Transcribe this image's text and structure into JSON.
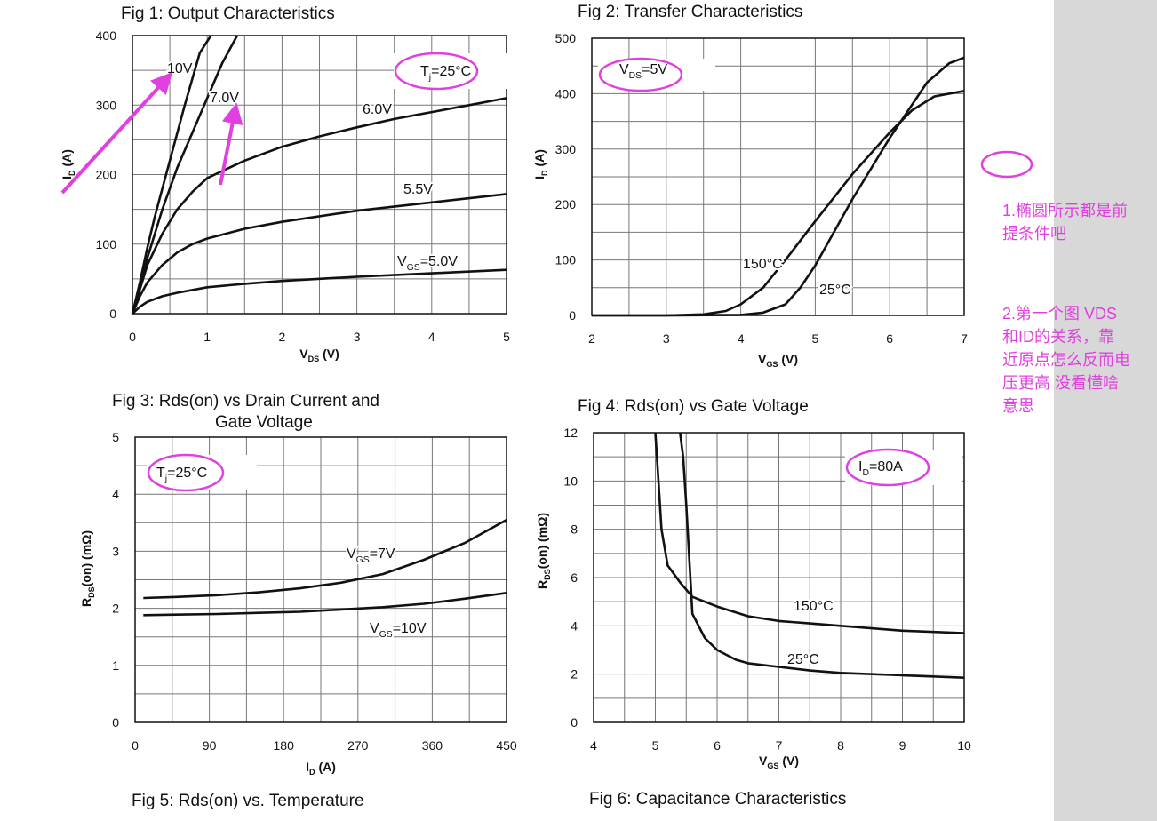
{
  "figures": [
    {
      "title": "Fig 1: Output Characteristics"
    },
    {
      "title": "Fig 2: Transfer Characteristics"
    },
    {
      "title": "Fig 3: Rds(on) vs Drain Current and",
      "title2": "Gate Voltage"
    },
    {
      "title": "Fig 4: Rds(on) vs Gate Voltage"
    },
    {
      "title": "Fig 5: Rds(on) vs. Temperature"
    },
    {
      "title": "Fig 6: Capacitance Characteristics"
    }
  ],
  "notes": {
    "note1": [
      "1.椭圆所示都是前",
      "提条件吧"
    ],
    "note2": [
      "2.第一个图 VDS",
      "和ID的关系，靠",
      "近原点怎么反而电",
      "压更高  没看懂啥",
      "意思"
    ]
  },
  "colors": {
    "annotation": "#e040e0",
    "curve": "#111111",
    "grid": "#777777",
    "sidebar": "#d8d8d8"
  },
  "chart_data": [
    {
      "type": "line",
      "title": "Fig 1: Output Characteristics",
      "xlabel": "VDS (V)",
      "ylabel": "ID (A)",
      "xlim": [
        0,
        5
      ],
      "ylim": [
        0,
        400
      ],
      "xticks": [
        "0",
        "1",
        "2",
        "3",
        "4",
        "5"
      ],
      "yticks": [
        "0",
        "100",
        "200",
        "300",
        "400"
      ],
      "condition": "Tj=25°C",
      "series": [
        {
          "name": "10V",
          "label": "10V",
          "x": [
            0,
            0.1,
            0.2,
            0.3,
            0.5,
            0.7,
            0.9,
            1.05
          ],
          "y": [
            0,
            45,
            95,
            140,
            220,
            300,
            375,
            400
          ]
        },
        {
          "name": "7.0V",
          "label": "7.0V",
          "x": [
            0,
            0.1,
            0.2,
            0.4,
            0.6,
            0.8,
            1.0,
            1.2,
            1.4
          ],
          "y": [
            0,
            40,
            80,
            150,
            210,
            260,
            310,
            360,
            400
          ]
        },
        {
          "name": "6.0V",
          "label": "6.0V",
          "x": [
            0,
            0.1,
            0.2,
            0.4,
            0.6,
            0.8,
            1.0,
            1.5,
            2,
            2.5,
            3,
            3.5,
            4,
            4.5,
            5
          ],
          "y": [
            0,
            35,
            70,
            115,
            150,
            175,
            195,
            220,
            240,
            255,
            268,
            280,
            290,
            300,
            310
          ]
        },
        {
          "name": "5.5V",
          "label": "5.5V",
          "x": [
            0,
            0.1,
            0.2,
            0.4,
            0.6,
            0.8,
            1.0,
            1.5,
            2,
            3,
            4,
            5
          ],
          "y": [
            0,
            25,
            45,
            70,
            88,
            100,
            108,
            122,
            132,
            148,
            160,
            172
          ]
        },
        {
          "name": "VGS=5.0V",
          "label": "VGS=5.0V",
          "x": [
            0,
            0.1,
            0.2,
            0.4,
            0.6,
            1.0,
            1.5,
            2,
            3,
            4,
            5
          ],
          "y": [
            0,
            10,
            17,
            25,
            30,
            38,
            43,
            47,
            53,
            58,
            63
          ]
        }
      ]
    },
    {
      "type": "line",
      "title": "Fig 2: Transfer Characteristics",
      "xlabel": "VGS (V)",
      "ylabel": "ID (A)",
      "xlim": [
        2,
        7
      ],
      "ylim": [
        0,
        500
      ],
      "xticks": [
        "2",
        "3",
        "4",
        "5",
        "6",
        "7"
      ],
      "yticks": [
        "0",
        "100",
        "200",
        "300",
        "400",
        "500"
      ],
      "condition": "VDS=5V",
      "series": [
        {
          "name": "150°C",
          "label": "150°C",
          "x": [
            2,
            3,
            3.5,
            3.8,
            4.0,
            4.3,
            4.6,
            5.0,
            5.5,
            6.0,
            6.3,
            6.6,
            7.0
          ],
          "y": [
            0,
            0,
            2,
            8,
            20,
            50,
            100,
            170,
            255,
            330,
            370,
            395,
            405
          ]
        },
        {
          "name": "25°C",
          "label": "25°C",
          "x": [
            2,
            3,
            4,
            4.3,
            4.6,
            4.8,
            5.0,
            5.5,
            6.0,
            6.5,
            6.8,
            7.0
          ],
          "y": [
            0,
            0,
            1,
            5,
            20,
            50,
            90,
            210,
            320,
            420,
            455,
            465
          ]
        }
      ]
    },
    {
      "type": "line",
      "title": "Fig 3: Rds(on) vs Drain Current and Gate Voltage",
      "xlabel": "ID (A)",
      "ylabel": "RDS(on) (mΩ)",
      "xlim": [
        0,
        450
      ],
      "ylim": [
        0,
        5
      ],
      "xticks": [
        "0",
        "90",
        "180",
        "270",
        "360",
        "450"
      ],
      "yticks": [
        "0",
        "1",
        "2",
        "3",
        "4",
        "5"
      ],
      "condition": "Tj=25°C",
      "series": [
        {
          "name": "VGS=7V",
          "label": "VGS=7V",
          "x": [
            10,
            50,
            100,
            150,
            200,
            250,
            300,
            350,
            400,
            450
          ],
          "y": [
            2.18,
            2.2,
            2.23,
            2.28,
            2.35,
            2.45,
            2.6,
            2.85,
            3.15,
            3.55
          ]
        },
        {
          "name": "VGS=10V",
          "label": "VGS=10V",
          "x": [
            10,
            50,
            100,
            150,
            200,
            250,
            300,
            350,
            400,
            450
          ],
          "y": [
            1.88,
            1.89,
            1.9,
            1.92,
            1.94,
            1.98,
            2.02,
            2.08,
            2.17,
            2.27
          ]
        }
      ]
    },
    {
      "type": "line",
      "title": "Fig 4: Rds(on) vs Gate Voltage",
      "xlabel": "VGS (V)",
      "ylabel": "RDS(on) (mΩ)",
      "xlim": [
        4,
        10
      ],
      "ylim": [
        0,
        12
      ],
      "xticks": [
        "4",
        "5",
        "6",
        "7",
        "8",
        "9",
        "10"
      ],
      "yticks": [
        "0",
        "2",
        "4",
        "6",
        "8",
        "10",
        "12"
      ],
      "condition": "ID=80A",
      "series": [
        {
          "name": "150°C",
          "label": "150°C",
          "x": [
            5.0,
            5.05,
            5.1,
            5.2,
            5.4,
            5.6,
            6.0,
            6.5,
            7.0,
            7.5,
            8.0,
            9.0,
            10.0
          ],
          "y": [
            12,
            10,
            8,
            6.5,
            5.8,
            5.2,
            4.8,
            4.4,
            4.2,
            4.1,
            4.0,
            3.8,
            3.7
          ]
        },
        {
          "name": "25°C",
          "label": "25°C",
          "x": [
            5.4,
            5.45,
            5.5,
            5.6,
            5.8,
            6.0,
            6.3,
            6.5,
            7.0,
            7.5,
            8.0,
            9.0,
            10.0
          ],
          "y": [
            12,
            11,
            9,
            4.5,
            3.5,
            3.0,
            2.6,
            2.45,
            2.3,
            2.15,
            2.05,
            1.95,
            1.85
          ]
        }
      ]
    }
  ]
}
